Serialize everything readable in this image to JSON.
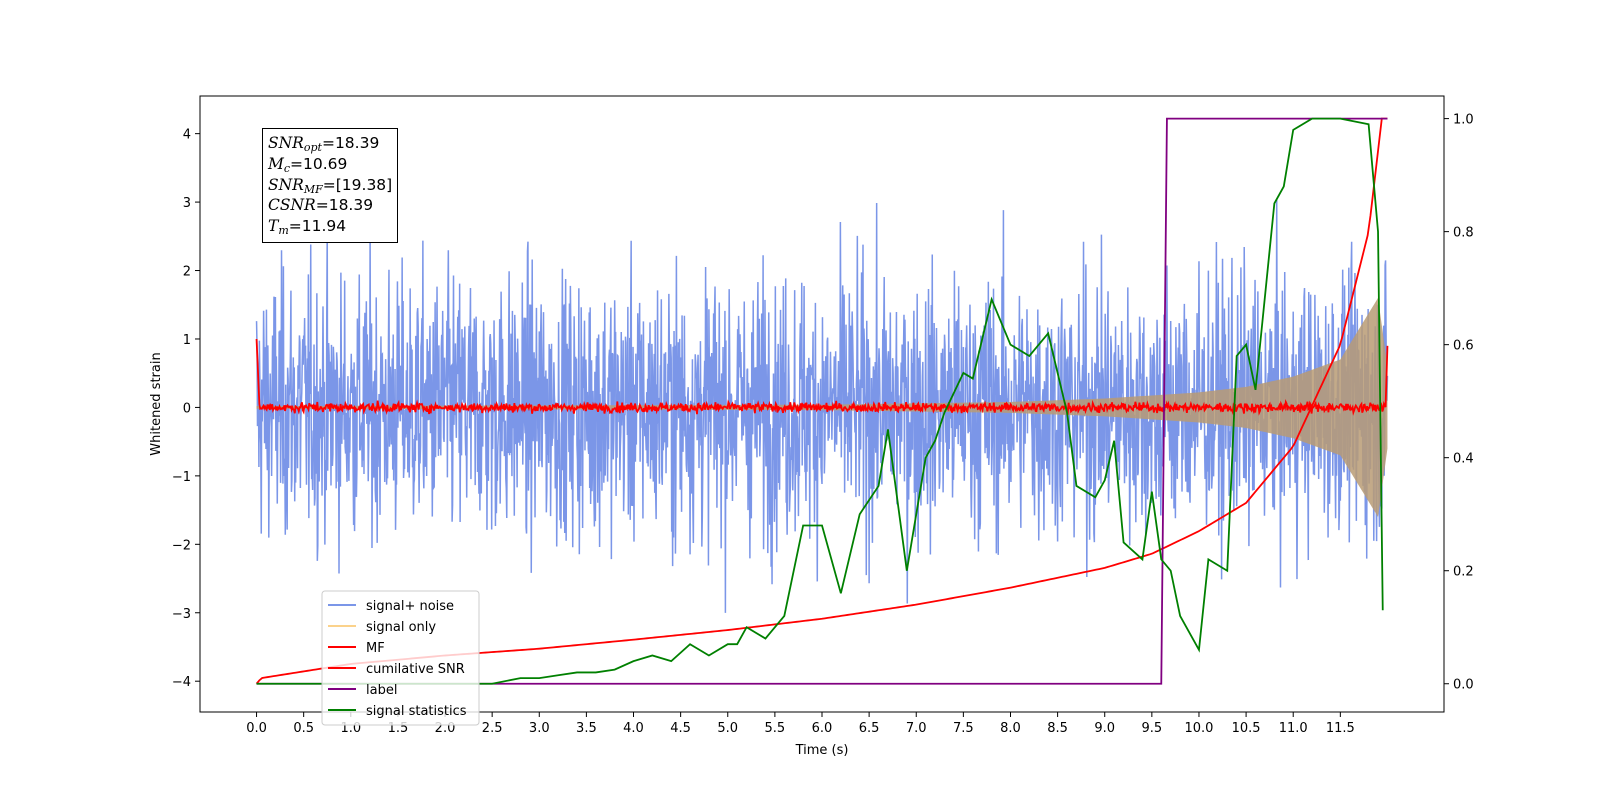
{
  "chart_data": {
    "type": "line",
    "xlabel": "Time (s)",
    "ylabel": "Whitened strain",
    "xlim": [
      -0.6,
      12.6
    ],
    "ylim": [
      -4.45,
      4.55
    ],
    "ylim_right": [
      -0.05,
      1.04
    ],
    "x_ticks": [
      "0.0",
      "0.5",
      "1.0",
      "1.5",
      "2.0",
      "2.5",
      "3.0",
      "3.5",
      "4.0",
      "4.5",
      "5.0",
      "5.5",
      "6.0",
      "6.5",
      "7.0",
      "7.5",
      "8.0",
      "8.5",
      "9.0",
      "9.5",
      "10.0",
      "10.5",
      "11.0",
      "11.5"
    ],
    "y_ticks": [
      "−4",
      "−3",
      "−2",
      "−1",
      "0",
      "1",
      "2",
      "3",
      "4"
    ],
    "y_ticks_right": [
      "0.0",
      "0.2",
      "0.4",
      "0.6",
      "0.8",
      "1.0"
    ],
    "grid": false,
    "legend_position": "lower-left",
    "annotation": [
      {
        "sym": "SNR",
        "sub": "opt",
        "value": "=18.39"
      },
      {
        "sym": "M",
        "sub": "c",
        "value": "=10.69"
      },
      {
        "sym": "SNR",
        "sub": "MF",
        "value": "=[19.38]"
      },
      {
        "sym": "CSNR",
        "sub": "",
        "value": "=18.39"
      },
      {
        "sym": "T",
        "sub": "m",
        "value": "=11.94"
      }
    ],
    "series": [
      {
        "name": "signal+ noise",
        "color": "#7b96e8",
        "axis": "left",
        "description_range": [
          -4.0,
          4.15
        ],
        "x_range": [
          0.0,
          12.0
        ]
      },
      {
        "name": "signal only",
        "color": "#fbd28b",
        "axis": "left",
        "envelope": {
          "x": [
            0.0,
            6.0,
            8.0,
            9.0,
            10.0,
            10.5,
            11.0,
            11.5,
            11.9,
            12.0
          ],
          "amp": [
            0.02,
            0.04,
            0.08,
            0.13,
            0.22,
            0.3,
            0.45,
            0.7,
            1.6,
            0.6
          ]
        }
      },
      {
        "name": "MF",
        "color": "#ff0000",
        "axis": "left",
        "x_range": [
          0.0,
          12.0
        ],
        "y_center": 0.0,
        "y_start": 1.0,
        "y_end": 0.9
      },
      {
        "name": "cumilative SNR",
        "color": "#ff0000",
        "axis": "right",
        "x": [
          0.0,
          0.05,
          1.0,
          2.0,
          3.0,
          4.0,
          5.0,
          6.0,
          7.0,
          8.0,
          9.0,
          9.5,
          10.0,
          10.5,
          11.0,
          11.5,
          11.8,
          11.94,
          12.0
        ],
        "y": [
          0.0,
          0.01,
          0.035,
          0.05,
          0.062,
          0.078,
          0.095,
          0.115,
          0.14,
          0.17,
          0.205,
          0.23,
          0.27,
          0.32,
          0.42,
          0.6,
          0.8,
          1.0,
          1.0
        ]
      },
      {
        "name": "label",
        "color": "#800080",
        "axis": "right",
        "x": [
          0.0,
          9.6,
          9.66,
          12.0
        ],
        "y": [
          0.0,
          0.0,
          1.0,
          1.0
        ]
      },
      {
        "name": "signal statistics",
        "color": "#008000",
        "axis": "right",
        "x": [
          0.0,
          2.5,
          2.8,
          3.0,
          3.2,
          3.4,
          3.6,
          3.8,
          4.0,
          4.2,
          4.4,
          4.6,
          4.8,
          5.0,
          5.1,
          5.2,
          5.4,
          5.6,
          5.8,
          6.0,
          6.2,
          6.4,
          6.6,
          6.7,
          6.9,
          7.1,
          7.2,
          7.3,
          7.5,
          7.6,
          7.8,
          7.9,
          8.0,
          8.2,
          8.4,
          8.6,
          8.7,
          8.9,
          9.0,
          9.1,
          9.2,
          9.4,
          9.5,
          9.6,
          9.7,
          9.8,
          10.0,
          10.1,
          10.3,
          10.4,
          10.5,
          10.6,
          10.8,
          10.9,
          11.0,
          11.2,
          11.5,
          11.8,
          11.9,
          11.95
        ],
        "y": [
          0.0,
          0.0,
          0.01,
          0.01,
          0.015,
          0.02,
          0.02,
          0.025,
          0.04,
          0.05,
          0.04,
          0.07,
          0.05,
          0.07,
          0.07,
          0.1,
          0.08,
          0.12,
          0.28,
          0.28,
          0.16,
          0.3,
          0.35,
          0.45,
          0.2,
          0.4,
          0.43,
          0.48,
          0.55,
          0.54,
          0.68,
          0.64,
          0.6,
          0.58,
          0.62,
          0.48,
          0.35,
          0.33,
          0.36,
          0.43,
          0.25,
          0.22,
          0.34,
          0.22,
          0.2,
          0.12,
          0.06,
          0.22,
          0.2,
          0.58,
          0.6,
          0.52,
          0.85,
          0.88,
          0.98,
          1.0,
          1.0,
          0.99,
          0.8,
          0.13
        ]
      }
    ]
  }
}
